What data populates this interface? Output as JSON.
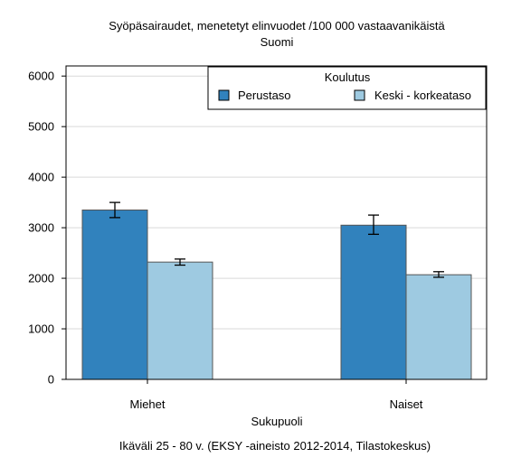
{
  "chart_data": {
    "type": "bar",
    "title": "Syöpäsairaudet, menetetyt elinvuodet /100 000 vastaavanikäistä",
    "subtitle": "Suomi",
    "xlabel": "Sukupuoli",
    "ylabel": "",
    "footnote": "Ikäväli 25 - 80 v. (EKSY -aineisto 2012-2014, Tilastokeskus)",
    "categories": [
      "Miehet",
      "Naiset"
    ],
    "ylim": [
      0,
      6200
    ],
    "yticks": [
      "0",
      "1000",
      "2000",
      "3000",
      "4000",
      "5000",
      "6000"
    ],
    "grid": true,
    "legend": {
      "title": "Koulutus",
      "placement": "top-right"
    },
    "series": [
      {
        "name": "Perustaso",
        "color": "#3182bd",
        "values": [
          3350,
          3050
        ],
        "error_low": [
          3200,
          2870
        ],
        "error_high": [
          3500,
          3250
        ]
      },
      {
        "name": "Keski - korkeataso",
        "color": "#9ecae1",
        "values": [
          2320,
          2070
        ],
        "error_low": [
          2260,
          2020
        ],
        "error_high": [
          2380,
          2130
        ]
      }
    ]
  }
}
